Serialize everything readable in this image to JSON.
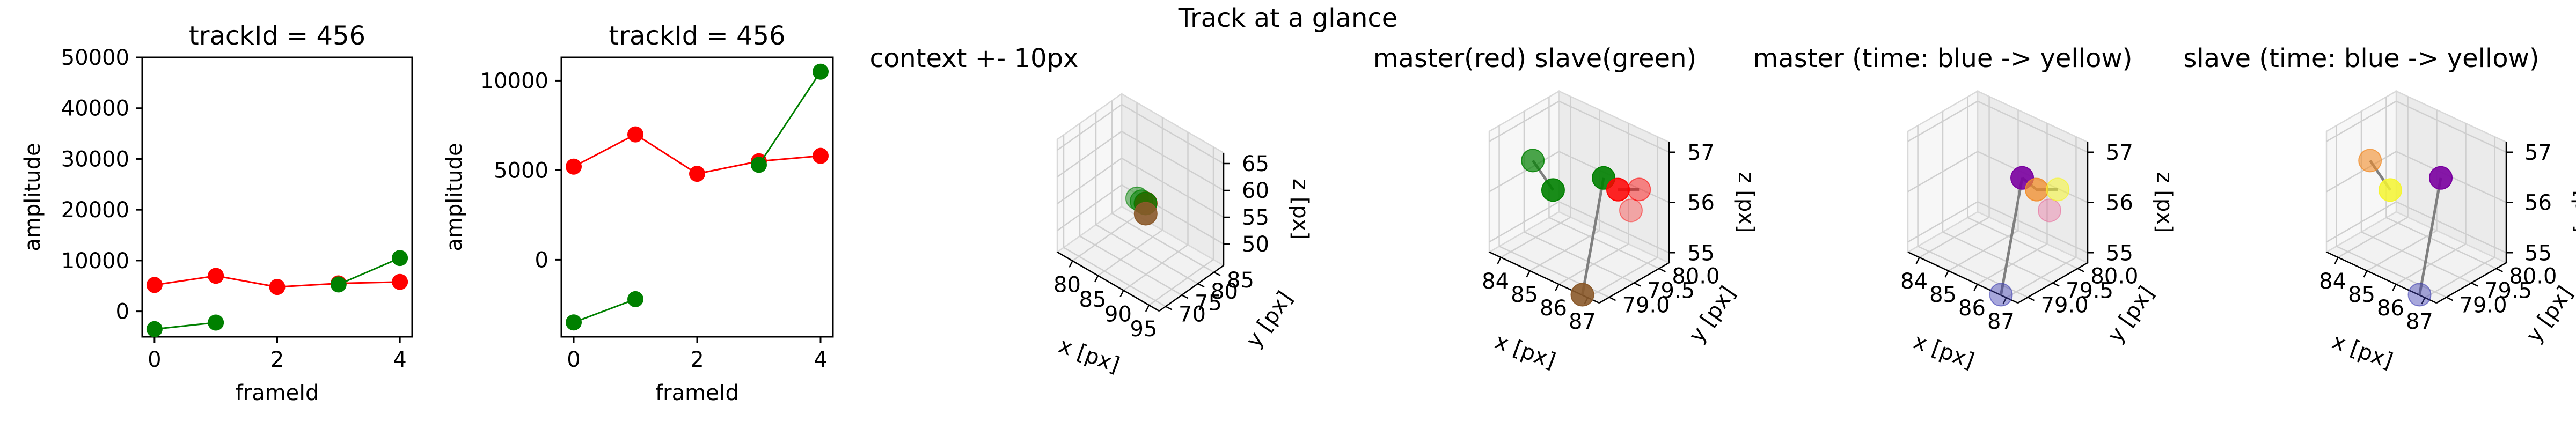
{
  "figure_title": "Track at a glance",
  "chart_data": [
    {
      "type": "line",
      "title": "trackId = 456",
      "xlabel": "frameId",
      "ylabel": "amplitude",
      "xlim": [
        -0.2,
        4.2
      ],
      "ylim": [
        -5000,
        50000
      ],
      "xticks": [
        0,
        2,
        4
      ],
      "yticks": [
        0,
        10000,
        20000,
        30000,
        40000,
        50000
      ],
      "series": [
        {
          "color": "#ff0000",
          "x": [
            0,
            1,
            2,
            3,
            4
          ],
          "y": [
            5200,
            7000,
            4800,
            5500,
            5800
          ]
        },
        {
          "color": "#008000",
          "x": [
            0,
            1
          ],
          "y": [
            -3500,
            -2200
          ]
        },
        {
          "color": "#008000",
          "x": [
            3,
            4
          ],
          "y": [
            5300,
            10500
          ]
        }
      ]
    },
    {
      "type": "line",
      "title": "trackId = 456",
      "xlabel": "frameId",
      "ylabel": "amplitude",
      "xlim": [
        -0.2,
        4.2
      ],
      "ylim": [
        -4300,
        11300
      ],
      "xticks": [
        0,
        2,
        4
      ],
      "yticks": [
        0,
        5000,
        10000
      ],
      "series": [
        {
          "color": "#ff0000",
          "x": [
            0,
            1,
            2,
            3,
            4
          ],
          "y": [
            5200,
            7000,
            4800,
            5500,
            5800
          ]
        },
        {
          "color": "#008000",
          "x": [
            0,
            1
          ],
          "y": [
            -3500,
            -2200
          ]
        },
        {
          "color": "#008000",
          "x": [
            3,
            4
          ],
          "y": [
            5300,
            10500
          ]
        }
      ]
    },
    {
      "type": "scatter",
      "projection": "3d",
      "title": "context +- 10px",
      "xlabel": "x [px]",
      "ylabel": "y [px]",
      "zlabel": "z [px]",
      "xlim": [
        77,
        97
      ],
      "ylim": [
        68,
        88
      ],
      "zlim": [
        46,
        67
      ],
      "xticks": [
        80,
        85,
        90,
        95
      ],
      "yticks": [
        70,
        75,
        80,
        85
      ],
      "zticks": [
        50,
        55,
        60,
        65
      ],
      "points": [
        {
          "x": 85.6,
          "y": 79.2,
          "z": 56.0,
          "color": "#008000",
          "alpha": 0.45
        },
        {
          "x": 86.2,
          "y": 79.6,
          "z": 55.6,
          "color": "#008000",
          "alpha": 0.55
        },
        {
          "x": 86.9,
          "y": 79.8,
          "z": 55.5,
          "color": "#ff0000",
          "alpha": 0.8
        },
        {
          "x": 86.8,
          "y": 79.9,
          "z": 55.4,
          "color": "#008000",
          "alpha": 0.8
        },
        {
          "x": 87.4,
          "y": 79.0,
          "z": 54.2,
          "color": "#8b5a2b",
          "alpha": 0.9
        }
      ]
    },
    {
      "type": "scatter",
      "projection": "3d",
      "title": "master(red) slave(green)",
      "xlabel": "x [px]",
      "ylabel": "y [px]",
      "zlabel": "z [px]",
      "xlim": [
        83.6,
        87.4
      ],
      "ylim": [
        78.8,
        80.2
      ],
      "zlim": [
        54.8,
        57.2
      ],
      "xticks": [
        84,
        85,
        86,
        87
      ],
      "yticks": [
        79.0,
        79.5,
        80.0
      ],
      "zticks": [
        55,
        56,
        57
      ],
      "lines": [
        {
          "x": [
            83.9,
            84.6
          ],
          "y": [
            79.5,
            79.5
          ],
          "z": [
            56.3,
            55.9
          ]
        },
        {
          "x": [
            86.5,
            87.4
          ],
          "y": [
            79.7,
            79.6
          ],
          "z": [
            56.3,
            56.6
          ]
        },
        {
          "x": [
            86.0,
            86.3
          ],
          "y": [
            79.7,
            79.1
          ],
          "z": [
            56.4,
            54.5
          ]
        }
      ],
      "points": [
        {
          "x": 83.9,
          "y": 79.5,
          "z": 56.3,
          "color": "#008000",
          "alpha": 0.7
        },
        {
          "x": 84.6,
          "y": 79.5,
          "z": 55.9,
          "color": "#008000",
          "alpha": 0.9
        },
        {
          "x": 86.0,
          "y": 79.7,
          "z": 56.4,
          "color": "#008000",
          "alpha": 0.9
        },
        {
          "x": 86.5,
          "y": 79.7,
          "z": 56.3,
          "color": "#ff0000",
          "alpha": 0.85
        },
        {
          "x": 87.4,
          "y": 79.6,
          "z": 56.6,
          "color": "#ff0000",
          "alpha": 0.45
        },
        {
          "x": 86.6,
          "y": 79.9,
          "z": 55.8,
          "color": "#ff0000",
          "alpha": 0.3
        },
        {
          "x": 86.3,
          "y": 79.1,
          "z": 54.5,
          "color": "#8b5a2b",
          "alpha": 0.9
        }
      ]
    },
    {
      "type": "scatter",
      "projection": "3d",
      "title": "master (time: blue -> yellow)",
      "xlabel": "x [px]",
      "ylabel": "y [px]",
      "zlabel": "z [px]",
      "xlim": [
        83.6,
        87.4
      ],
      "ylim": [
        78.8,
        80.2
      ],
      "zlim": [
        54.8,
        57.2
      ],
      "xticks": [
        84,
        85,
        86,
        87
      ],
      "yticks": [
        79.0,
        79.5,
        80.0
      ],
      "zticks": [
        55,
        56,
        57
      ],
      "lines": [
        {
          "x": [
            86.0,
            86.5,
            87.4
          ],
          "y": [
            79.7,
            79.7,
            79.6
          ],
          "z": [
            56.4,
            56.3,
            56.6
          ]
        },
        {
          "x": [
            86.0,
            86.3
          ],
          "y": [
            79.7,
            79.1
          ],
          "z": [
            56.4,
            54.5
          ]
        }
      ],
      "points": [
        {
          "x": 86.3,
          "y": 79.1,
          "z": 54.5,
          "color": "#3b3bb0",
          "alpha": 0.45
        },
        {
          "x": 86.6,
          "y": 79.9,
          "z": 55.8,
          "color": "#e85a90",
          "alpha": 0.35
        },
        {
          "x": 86.0,
          "y": 79.7,
          "z": 56.4,
          "color": "#7a00a0",
          "alpha": 0.9
        },
        {
          "x": 86.5,
          "y": 79.7,
          "z": 56.3,
          "color": "#f28c28",
          "alpha": 0.75
        },
        {
          "x": 87.4,
          "y": 79.6,
          "z": 56.6,
          "color": "#f5f530",
          "alpha": 0.55
        }
      ]
    },
    {
      "type": "scatter",
      "projection": "3d",
      "title": "slave (time: blue -> yellow)",
      "xlabel": "x [px]",
      "ylabel": "y [px]",
      "zlabel": "z [px]",
      "xlim": [
        83.6,
        87.4
      ],
      "ylim": [
        78.8,
        80.2
      ],
      "zlim": [
        54.8,
        57.2
      ],
      "xticks": [
        84,
        85,
        86,
        87
      ],
      "yticks": [
        79.0,
        79.5,
        80.0
      ],
      "zticks": [
        55,
        56,
        57
      ],
      "lines": [
        {
          "x": [
            83.9,
            84.6
          ],
          "y": [
            79.5,
            79.5
          ],
          "z": [
            56.3,
            55.9
          ]
        },
        {
          "x": [
            86.0,
            86.3
          ],
          "y": [
            79.7,
            79.1
          ],
          "z": [
            56.4,
            54.5
          ]
        }
      ],
      "points": [
        {
          "x": 83.9,
          "y": 79.5,
          "z": 56.3,
          "color": "#f28c28",
          "alpha": 0.6
        },
        {
          "x": 84.6,
          "y": 79.5,
          "z": 55.9,
          "color": "#f5f530",
          "alpha": 0.85
        },
        {
          "x": 86.0,
          "y": 79.7,
          "z": 56.4,
          "color": "#7a00a0",
          "alpha": 0.9
        },
        {
          "x": 86.3,
          "y": 79.1,
          "z": 54.5,
          "color": "#3b3bb0",
          "alpha": 0.45
        }
      ]
    }
  ]
}
